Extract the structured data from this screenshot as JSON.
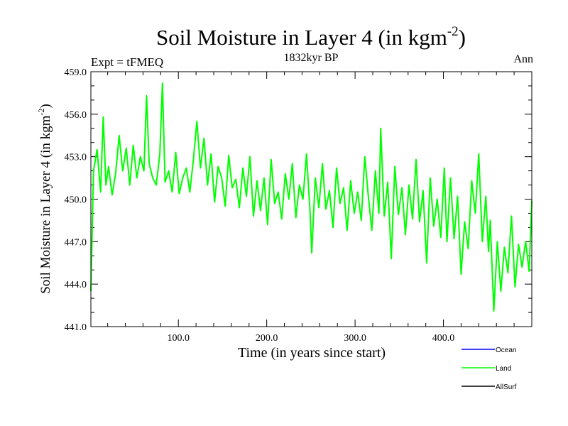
{
  "chart_data": {
    "type": "line",
    "title": "Soil Moisture in Layer 4 (in kgm",
    "title_sup": "-2",
    "title_close": ")",
    "subtitle": "1832kyr BP",
    "top_left": "Expt = tFMEQ",
    "top_right": "Ann",
    "xlabel": "Time (in years since start)",
    "ylabel": "Soil Moisture in Layer 4 (in kgm",
    "ylabel_sup": "-2",
    "ylabel_close": ")",
    "xlim": [
      1,
      500
    ],
    "ylim": [
      441.0,
      459.0
    ],
    "x_ticks": [
      {
        "value": 100,
        "label": "100.0"
      },
      {
        "value": 200,
        "label": "200.0"
      },
      {
        "value": 300,
        "label": "300.0"
      },
      {
        "value": 400,
        "label": "400.0"
      }
    ],
    "y_ticks": [
      {
        "value": 441,
        "label": "441.0"
      },
      {
        "value": 444,
        "label": "444.0"
      },
      {
        "value": 447,
        "label": "447.0"
      },
      {
        "value": 450,
        "label": "450.0"
      },
      {
        "value": 453,
        "label": "453.0"
      },
      {
        "value": 456,
        "label": "456.0"
      },
      {
        "value": 459,
        "label": "459.0"
      }
    ],
    "legend_position": "bottom-right",
    "legend": [
      {
        "name": "Ocean",
        "color": "#0000ff"
      },
      {
        "name": "Land",
        "color": "#00ff00"
      },
      {
        "name": "AllSurf",
        "color": "#000000"
      }
    ],
    "series": [
      {
        "name": "Land",
        "color": "#00ff00",
        "x": [
          1,
          4,
          8,
          12,
          15,
          18,
          21,
          25,
          29,
          33,
          37,
          41,
          45,
          49,
          53,
          57,
          61,
          64,
          67,
          71,
          75,
          79,
          82,
          85,
          89,
          93,
          97,
          101,
          105,
          109,
          113,
          117,
          121,
          125,
          129,
          133,
          137,
          141,
          145,
          149,
          153,
          157,
          161,
          165,
          169,
          173,
          177,
          181,
          185,
          189,
          193,
          197,
          201,
          205,
          209,
          213,
          217,
          221,
          225,
          229,
          233,
          237,
          241,
          245,
          249,
          251,
          255,
          259,
          263,
          267,
          271,
          275,
          279,
          283,
          287,
          291,
          295,
          299,
          303,
          307,
          311,
          315,
          319,
          323,
          327,
          329,
          333,
          337,
          341,
          345,
          349,
          353,
          357,
          361,
          365,
          369,
          373,
          377,
          381,
          385,
          389,
          393,
          397,
          401,
          404,
          408,
          412,
          416,
          420,
          424,
          428,
          432,
          436,
          440,
          444,
          448,
          451,
          453,
          457,
          461,
          465,
          469,
          473,
          477,
          481,
          485,
          489,
          493,
          497,
          500
        ],
        "values": [
          443.5,
          452.0,
          453.5,
          450.5,
          455.8,
          451.0,
          452.3,
          450.3,
          451.8,
          454.5,
          452.0,
          453.6,
          451.0,
          453.8,
          451.5,
          453.0,
          452.0,
          457.3,
          452.5,
          451.5,
          451.0,
          453.2,
          458.2,
          451.2,
          452.0,
          450.5,
          453.3,
          450.4,
          451.5,
          452.2,
          450.5,
          452.8,
          455.5,
          452.2,
          454.3,
          451.0,
          453.2,
          449.8,
          452.3,
          451.5,
          449.5,
          453.1,
          450.8,
          451.4,
          449.4,
          452.2,
          450.2,
          453.0,
          448.8,
          451.3,
          449.2,
          451.5,
          448.2,
          452.8,
          449.7,
          450.5,
          448.6,
          451.8,
          450.0,
          452.5,
          448.7,
          451.0,
          450.0,
          453.2,
          449.2,
          446.2,
          451.5,
          449.4,
          452.5,
          449.3,
          450.6,
          448.0,
          452.2,
          449.7,
          450.8,
          447.8,
          451.3,
          449.0,
          450.5,
          448.5,
          453.0,
          450.2,
          447.8,
          452.0,
          449.0,
          455.0,
          448.8,
          451.2,
          445.8,
          452.3,
          448.9,
          450.8,
          447.5,
          451.0,
          448.6,
          452.8,
          448.4,
          450.6,
          445.5,
          451.5,
          448.1,
          450.0,
          447.3,
          452.2,
          447.0,
          451.5,
          447.2,
          450.2,
          444.7,
          448.4,
          446.5,
          451.3,
          449.0,
          453.2,
          447.0,
          450.2,
          446.3,
          448.5,
          442.1,
          447.0,
          443.5,
          446.6,
          444.8,
          448.8,
          443.8,
          446.8,
          445.2,
          447.0,
          444.9,
          449.9
        ]
      }
    ]
  }
}
